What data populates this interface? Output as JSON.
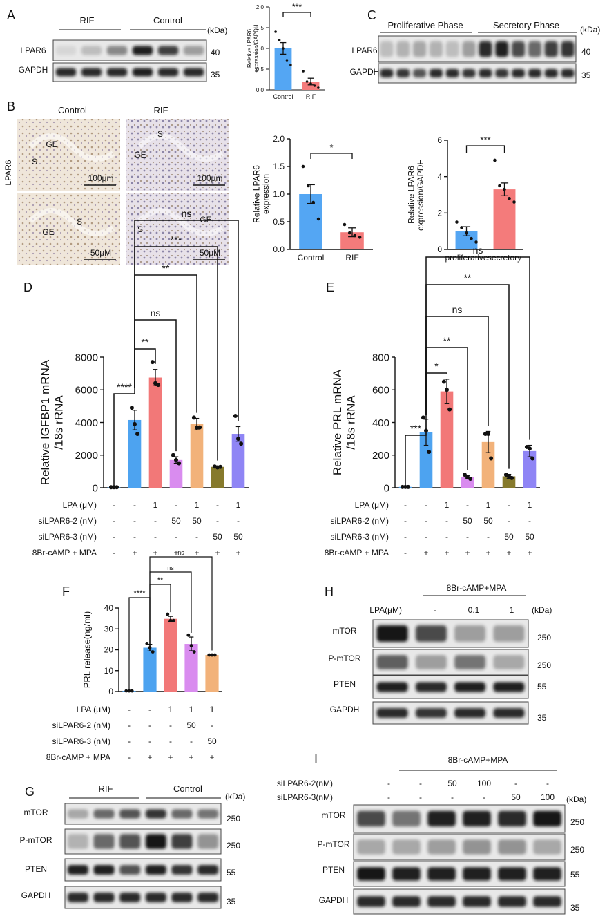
{
  "panel_letters": {
    "A": "A",
    "B": "B",
    "C": "C",
    "D": "D",
    "E": "E",
    "F": "F",
    "G": "G",
    "H": "H",
    "I": "I"
  },
  "colors": {
    "blue": "#4da3f0",
    "red": "#f27878",
    "purple": "#d98cef",
    "orange": "#f2b27a",
    "olive": "#867a2c",
    "violet": "#8f85f5",
    "ctrl_blue": "#54a6f3",
    "rif_red": "#f47b7b",
    "blot_bg": "#e8e8e8",
    "band": "#151515"
  },
  "panelA": {
    "groups": [
      "RIF",
      "Control"
    ],
    "rows": [
      "LPAR6",
      "GAPDH"
    ],
    "kda_header": "(kDa)",
    "kda": [
      "40",
      "35"
    ],
    "chart_data": {
      "type": "bar",
      "categories": [
        "Control",
        "RIF"
      ],
      "values": [
        1.0,
        0.2
      ],
      "errors": [
        0.14,
        0.08
      ],
      "points": [
        [
          1.4,
          1.2,
          1.0,
          0.7,
          0.6
        ],
        [
          0.45,
          0.2,
          0.15,
          0.1,
          0.05
        ]
      ],
      "ylabel": "Relative LPAR6\nexpression/GAPDH",
      "ylim": [
        0,
        2.0
      ],
      "yticks": [
        "0.0",
        "0.5",
        "1.0",
        "1.5",
        "2.0"
      ],
      "significance": "***"
    }
  },
  "panelB": {
    "side_label": "LPAR6",
    "columns": [
      "Control",
      "RIF"
    ],
    "tiles": [
      {
        "labels": [
          "S",
          "GE"
        ],
        "scale": "100μm"
      },
      {
        "labels": [
          "S",
          "GE"
        ],
        "scale": "100μm"
      },
      {
        "labels": [
          "S",
          "GE"
        ],
        "scale": "50μM"
      },
      {
        "labels": [
          "S",
          "GE"
        ],
        "scale": "50μM"
      }
    ],
    "chart_data": {
      "type": "bar",
      "categories": [
        "Control",
        "RIF"
      ],
      "values": [
        1.0,
        0.31
      ],
      "errors": [
        0.17,
        0.08
      ],
      "points": [
        [
          1.5,
          1.15,
          0.85,
          0.55
        ],
        [
          0.45,
          0.3,
          0.25,
          0.22
        ]
      ],
      "ylabel": "Relative LPAR6\nexpression",
      "ylim": [
        0,
        2.0
      ],
      "yticks": [
        "0.0",
        "0.5",
        "1.0",
        "1.5",
        "2.0"
      ],
      "significance": "*"
    }
  },
  "panelC": {
    "groups": [
      "Proliferative Phase",
      "Secretory Phase"
    ],
    "rows": [
      "LPAR6",
      "GAPDH"
    ],
    "kda_header": "(kDa)",
    "kda": [
      "40",
      "35"
    ],
    "chart_data": {
      "type": "bar",
      "categories": [
        "proliferative",
        "secretory"
      ],
      "values": [
        1.0,
        3.3
      ],
      "errors": [
        0.25,
        0.35
      ],
      "points": [
        [
          1.5,
          1.2,
          0.9,
          0.6,
          0.4
        ],
        [
          4.9,
          3.5,
          3.3,
          2.8,
          2.6
        ]
      ],
      "ylabel": "Relative LPAR6\nexpression/GAPDH",
      "ylim": [
        0,
        6
      ],
      "yticks": [
        "0",
        "2",
        "4",
        "6"
      ],
      "significance": "***"
    }
  },
  "panelD": {
    "chart_data": {
      "type": "bar",
      "ylabel": "Relative IGFBP1 mRNA\n/18s rRNA",
      "ylim": [
        0,
        8000
      ],
      "yticks": [
        "0",
        "2000",
        "4000",
        "6000",
        "8000"
      ],
      "values": [
        30,
        4150,
        6750,
        1700,
        3900,
        1280,
        3300
      ],
      "errors": [
        0,
        600,
        500,
        200,
        350,
        50,
        450
      ],
      "points": [
        [
          30,
          30,
          30
        ],
        [
          4900,
          3900,
          3300
        ],
        [
          7700,
          6400,
          6300
        ],
        [
          2000,
          1700,
          1500
        ],
        [
          4300,
          3700,
          3700
        ],
        [
          1300,
          1250,
          1280
        ],
        [
          4400,
          3000,
          2700
        ]
      ],
      "brackets": [
        "****",
        "**",
        "ns",
        "**",
        "***",
        "ns"
      ],
      "conditions": [
        {
          "label": "LPA (μM)",
          "values": [
            "-",
            "-",
            "1",
            "-",
            "1",
            "-",
            "1"
          ]
        },
        {
          "label": "siLPAR6-2 (nM)",
          "values": [
            "-",
            "-",
            "-",
            "50",
            "50",
            "-",
            "-"
          ]
        },
        {
          "label": "siLPAR6-3 (nM)",
          "values": [
            "-",
            "-",
            "-",
            "-",
            "-",
            "50",
            "50"
          ]
        },
        {
          "label": "8Br-cAMP + MPA",
          "values": [
            "-",
            "+",
            "+",
            "+",
            "+",
            "+",
            "+"
          ]
        }
      ]
    }
  },
  "panelE": {
    "chart_data": {
      "type": "bar",
      "ylabel": "Relative PRL mRNA\n/18s rRNA",
      "ylim": [
        0,
        800
      ],
      "yticks": [
        "0",
        "200",
        "400",
        "600",
        "800"
      ],
      "values": [
        5,
        340,
        590,
        65,
        280,
        70,
        225
      ],
      "errors": [
        0,
        80,
        75,
        10,
        65,
        12,
        35
      ],
      "points": [
        [
          5,
          5,
          5
        ],
        [
          430,
          350,
          220
        ],
        [
          650,
          600,
          480
        ],
        [
          80,
          65,
          55
        ],
        [
          330,
          330,
          180
        ],
        [
          80,
          70,
          60
        ],
        [
          250,
          240,
          180
        ]
      ],
      "brackets": [
        "***",
        "*",
        "**",
        "ns",
        "**",
        "ns"
      ],
      "conditions": [
        {
          "label": "LPA (μM)",
          "values": [
            "-",
            "-",
            "1",
            "-",
            "1",
            "-",
            "1"
          ]
        },
        {
          "label": "siLPAR6-2 (nM)",
          "values": [
            "-",
            "-",
            "-",
            "50",
            "50",
            "-",
            "-"
          ]
        },
        {
          "label": "siLPAR6-3 (nM)",
          "values": [
            "-",
            "-",
            "-",
            "-",
            "-",
            "50",
            "50"
          ]
        },
        {
          "label": "8Br-cAMP + MPA",
          "values": [
            "-",
            "+",
            "+",
            "+",
            "+",
            "+",
            "+"
          ]
        }
      ]
    }
  },
  "panelF": {
    "chart_data": {
      "type": "bar",
      "ylabel": "PRL release(ng/ml)",
      "ylim": [
        0,
        40
      ],
      "yticks": [
        "0",
        "10",
        "20",
        "30",
        "40"
      ],
      "values": [
        0.3,
        21,
        34.8,
        22.8,
        17.5
      ],
      "errors": [
        0,
        1.6,
        1.2,
        3.3,
        0.2
      ],
      "points": [
        [
          0.3,
          0.3,
          0.3
        ],
        [
          23,
          21,
          19
        ],
        [
          37,
          34,
          34
        ],
        [
          27,
          22,
          19
        ],
        [
          17.5,
          17.5,
          17.5
        ]
      ],
      "brackets": [
        "****",
        "**",
        "ns",
        "ns"
      ],
      "conditions": [
        {
          "label": "LPA (μM)",
          "values": [
            "-",
            "-",
            "1",
            "1",
            "1"
          ]
        },
        {
          "label": "siLPAR6-2 (nM)",
          "values": [
            "-",
            "-",
            "-",
            "50",
            "-"
          ]
        },
        {
          "label": "siLPAR6-3 (nM)",
          "values": [
            "-",
            "-",
            "-",
            "-",
            "50"
          ]
        },
        {
          "label": "8Br-cAMP + MPA",
          "values": [
            "-",
            "+",
            "+",
            "+",
            "+"
          ]
        }
      ]
    }
  },
  "panelG": {
    "groups": [
      "RIF",
      "Control"
    ],
    "rows": [
      "mTOR",
      "P-mTOR",
      "PTEN",
      "GAPDH"
    ],
    "kda_header": "(kDa)",
    "kda": [
      "250",
      "250",
      "55",
      "35"
    ]
  },
  "panelH": {
    "treatment": "8Br-cAMP+MPA",
    "lpa_label": "LPA(μM)",
    "lanes": [
      "-",
      "-",
      "0.1",
      "1"
    ],
    "rows": [
      "mTOR",
      "P-mTOR",
      "PTEN",
      "GAPDH"
    ],
    "kda_header": "(kDa)",
    "kda": [
      "250",
      "250",
      "55",
      "35"
    ]
  },
  "panelI": {
    "treatment": "8Br-cAMP+MPA",
    "si2_label": "siLPAR6-2(nM)",
    "si3_label": "siLPAR6-3(nM)",
    "si2": [
      "-",
      "-",
      "50",
      "100",
      "-",
      "-"
    ],
    "si3": [
      "-",
      "-",
      "-",
      "-",
      "50",
      "100"
    ],
    "rows": [
      "mTOR",
      "P-mTOR",
      "PTEN",
      "GAPDH"
    ],
    "kda_header": "(kDa)",
    "kda": [
      "250",
      "250",
      "55",
      "35"
    ]
  }
}
